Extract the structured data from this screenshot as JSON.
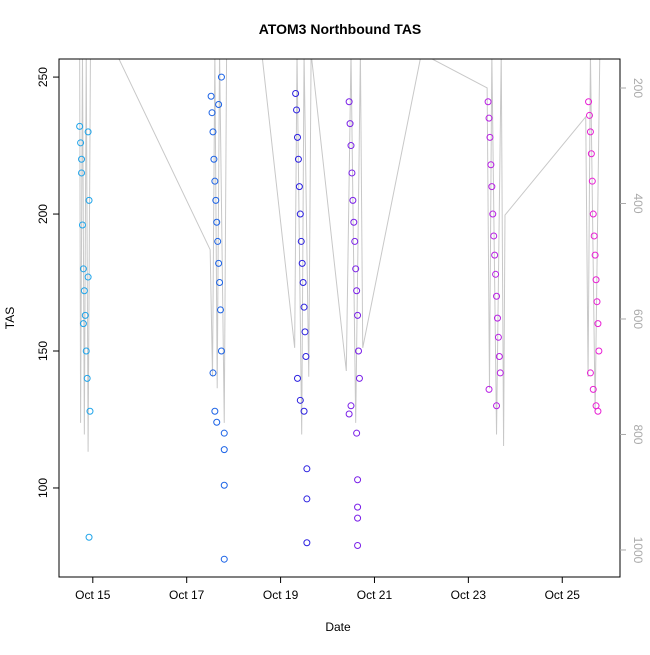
{
  "chart_data": {
    "type": "scatter",
    "title": "ATOM3 Northbound TAS",
    "x_label": "Date",
    "y_label": "TAS",
    "xlim": [
      14.28,
      26.23
    ],
    "xticks": [
      {
        "value": 15,
        "label": "Oct 15"
      },
      {
        "value": 17,
        "label": "Oct 17"
      },
      {
        "value": 19,
        "label": "Oct 19"
      },
      {
        "value": 21,
        "label": "Oct 21"
      },
      {
        "value": 23,
        "label": "Oct 23"
      },
      {
        "value": 25,
        "label": "Oct 25"
      }
    ],
    "ylim": [
      67.5,
      256.6
    ],
    "yticks": [
      100,
      150,
      200,
      250
    ],
    "y2lim": [
      1046.8,
      149.8
    ],
    "y2ticks": [
      200,
      400,
      600,
      800,
      1000
    ],
    "series": [
      {
        "color": "#1ea4ea",
        "x": [
          14.72,
          14.74,
          14.76,
          14.78,
          14.8,
          14.82,
          14.84,
          14.86,
          14.88,
          14.9,
          14.92,
          14.94,
          14.76,
          14.8,
          14.92,
          14.9
        ],
        "values": [
          232,
          226,
          215,
          196,
          180,
          172,
          163,
          150,
          140,
          230,
          205,
          128,
          220,
          160,
          82,
          177
        ]
      },
      {
        "color": "#1a62e6",
        "x": [
          17.52,
          17.54,
          17.56,
          17.58,
          17.6,
          17.62,
          17.64,
          17.66,
          17.68,
          17.7,
          17.72,
          17.74,
          17.56,
          17.6,
          17.64,
          17.74,
          17.68,
          17.8,
          17.8,
          17.8,
          17.8
        ],
        "values": [
          243,
          237,
          230,
          220,
          212,
          205,
          197,
          190,
          182,
          175,
          165,
          150,
          142,
          128,
          124,
          250,
          240,
          120,
          114,
          101,
          74
        ]
      },
      {
        "color": "#2a1fe0",
        "x": [
          19.32,
          19.34,
          19.36,
          19.38,
          19.4,
          19.42,
          19.44,
          19.46,
          19.48,
          19.5,
          19.52,
          19.54,
          19.36,
          19.42,
          19.5,
          19.56,
          19.56,
          19.56
        ],
        "values": [
          244,
          238,
          228,
          220,
          210,
          200,
          190,
          182,
          175,
          166,
          157,
          148,
          140,
          132,
          128,
          107,
          96,
          80
        ]
      },
      {
        "color": "#7a1fe8",
        "x": [
          20.46,
          20.48,
          20.5,
          20.52,
          20.54,
          20.56,
          20.58,
          20.6,
          20.62,
          20.64,
          20.66,
          20.68,
          20.5,
          20.46,
          20.62,
          20.64,
          20.64,
          20.64,
          20.64
        ],
        "values": [
          241,
          233,
          225,
          215,
          205,
          197,
          190,
          180,
          172,
          163,
          150,
          140,
          130,
          127,
          120,
          103,
          93,
          89,
          79
        ]
      },
      {
        "color": "#b81fe4",
        "x": [
          23.42,
          23.44,
          23.46,
          23.48,
          23.5,
          23.52,
          23.54,
          23.56,
          23.58,
          23.6,
          23.62,
          23.64,
          23.66,
          23.68,
          23.44,
          23.6
        ],
        "values": [
          241,
          235,
          228,
          218,
          210,
          200,
          192,
          185,
          178,
          170,
          162,
          155,
          148,
          142,
          136,
          130
        ]
      },
      {
        "color": "#e81fd4",
        "x": [
          25.56,
          25.58,
          25.6,
          25.62,
          25.64,
          25.66,
          25.68,
          25.7,
          25.72,
          25.74,
          25.76,
          25.78,
          25.6,
          25.66,
          25.72,
          25.76
        ],
        "values": [
          241,
          236,
          230,
          222,
          212,
          200,
          192,
          185,
          176,
          168,
          160,
          150,
          142,
          136,
          130,
          128
        ]
      },
      {
        "type": "line",
        "axis": "y2",
        "color": "#c8c8c8",
        "x": [
          14.72,
          14.74,
          14.78,
          14.82,
          14.86,
          14.9,
          14.95,
          15.5,
          17.5,
          17.55,
          17.6,
          17.65,
          17.7,
          17.8,
          17.85,
          18.6,
          19.3,
          19.35,
          19.45,
          19.5,
          19.6,
          19.65,
          20.4,
          20.5,
          20.6,
          20.7,
          20.75,
          22.0,
          23.4,
          23.45,
          23.5,
          23.6,
          23.7,
          23.75,
          23.78,
          25.5,
          25.55,
          25.6,
          25.7,
          25.8
        ],
        "values": [
          140,
          780,
          140,
          800,
          140,
          830,
          140,
          140,
          480,
          700,
          140,
          720,
          140,
          780,
          140,
          140,
          650,
          140,
          800,
          140,
          700,
          140,
          690,
          140,
          780,
          140,
          650,
          140,
          200,
          720,
          140,
          800,
          140,
          820,
          420,
          250,
          700,
          140,
          760,
          140
        ]
      }
    ]
  }
}
